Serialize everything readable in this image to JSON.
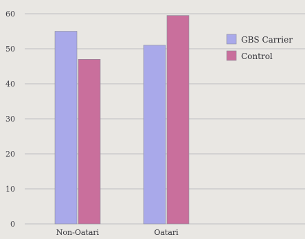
{
  "chart_data": {
    "type": "bar",
    "title": "",
    "xlabel": "",
    "ylabel": "",
    "categories": [
      "Non-Oatari",
      "Oatari"
    ],
    "series": [
      {
        "name": "GBS Carrier",
        "values": [
          55,
          51
        ],
        "color": "#a9a9ea"
      },
      {
        "name": "Control",
        "values": [
          47,
          59.5
        ],
        "color": "#c96f9c"
      }
    ],
    "ylim": [
      0,
      60
    ],
    "yticks": [
      0,
      10,
      20,
      30,
      40,
      50,
      60
    ],
    "grid": true,
    "legend_position": "right"
  }
}
